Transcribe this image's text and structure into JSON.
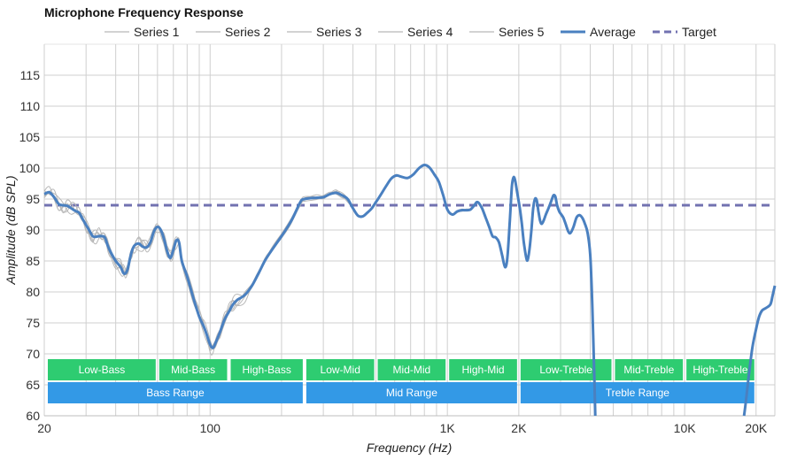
{
  "chart_data": {
    "type": "line",
    "title": "Microphone Frequency Response",
    "xlabel": "Frequency (Hz)",
    "ylabel": "Amplitude (dB SPL)",
    "x_scale": "log",
    "xlim": [
      20,
      24000
    ],
    "ylim": [
      60,
      120
    ],
    "yticks": [
      60,
      65,
      70,
      75,
      80,
      85,
      90,
      95,
      100,
      105,
      110,
      115
    ],
    "xtick_labels": [
      {
        "value": 20,
        "label": "20"
      },
      {
        "value": 100,
        "label": "100"
      },
      {
        "value": 1000,
        "label": "1K"
      },
      {
        "value": 2000,
        "label": "2K"
      },
      {
        "value": 10000,
        "label": "10K"
      },
      {
        "value": 20000,
        "label": "20K"
      }
    ],
    "grid": true,
    "legend_position": "top",
    "legend": [
      {
        "name": "Series 1",
        "style": "thin",
        "color": "#c4c4c4"
      },
      {
        "name": "Series 2",
        "style": "thin",
        "color": "#c4c4c4"
      },
      {
        "name": "Series 3",
        "style": "thin",
        "color": "#c4c4c4"
      },
      {
        "name": "Series 4",
        "style": "thin",
        "color": "#c4c4c4"
      },
      {
        "name": "Series 5",
        "style": "thin",
        "color": "#c4c4c4"
      },
      {
        "name": "Average",
        "style": "solid",
        "color": "#4a80c0"
      },
      {
        "name": "Target",
        "style": "dashed",
        "color": "#7272b0"
      }
    ],
    "target_value": 94,
    "average": [
      [
        20,
        95.8
      ],
      [
        21,
        96.1
      ],
      [
        22,
        95.3
      ],
      [
        23,
        94.2
      ],
      [
        24,
        94.0
      ],
      [
        25,
        93.9
      ],
      [
        26,
        93.5
      ],
      [
        27,
        93.1
      ],
      [
        28,
        92.8
      ],
      [
        29,
        91.8
      ],
      [
        30,
        90.8
      ],
      [
        31,
        89.9
      ],
      [
        32,
        89.0
      ],
      [
        33,
        88.9
      ],
      [
        34,
        89.0
      ],
      [
        35,
        89.0
      ],
      [
        36,
        88.8
      ],
      [
        37,
        87.5
      ],
      [
        38,
        86.5
      ],
      [
        40,
        85.0
      ],
      [
        42,
        84.0
      ],
      [
        43,
        83.1
      ],
      [
        44,
        83.0
      ],
      [
        45,
        83.8
      ],
      [
        46,
        85.5
      ],
      [
        47,
        86.8
      ],
      [
        48,
        87.5
      ],
      [
        50,
        87.8
      ],
      [
        52,
        87.3
      ],
      [
        54,
        87.2
      ],
      [
        56,
        88.0
      ],
      [
        58,
        89.8
      ],
      [
        60,
        90.5
      ],
      [
        62,
        90.0
      ],
      [
        64,
        88.5
      ],
      [
        66,
        86.5
      ],
      [
        68,
        85.5
      ],
      [
        70,
        86.8
      ],
      [
        72,
        88.3
      ],
      [
        74,
        88.0
      ],
      [
        76,
        85.0
      ],
      [
        80,
        82.5
      ],
      [
        85,
        79.0
      ],
      [
        90,
        76.0
      ],
      [
        95,
        74.0
      ],
      [
        100,
        71.5
      ],
      [
        103,
        71.0
      ],
      [
        106,
        72.0
      ],
      [
        110,
        73.5
      ],
      [
        115,
        75.5
      ],
      [
        120,
        76.8
      ],
      [
        125,
        78.0
      ],
      [
        130,
        78.7
      ],
      [
        140,
        79.5
      ],
      [
        150,
        81.0
      ],
      [
        160,
        83.0
      ],
      [
        170,
        85.0
      ],
      [
        180,
        86.5
      ],
      [
        200,
        89.0
      ],
      [
        220,
        91.5
      ],
      [
        240,
        94.5
      ],
      [
        250,
        95.0
      ],
      [
        280,
        95.2
      ],
      [
        300,
        95.3
      ],
      [
        320,
        95.8
      ],
      [
        340,
        96.0
      ],
      [
        360,
        95.6
      ],
      [
        380,
        95.0
      ],
      [
        400,
        93.5
      ],
      [
        420,
        92.3
      ],
      [
        440,
        92.2
      ],
      [
        460,
        92.8
      ],
      [
        480,
        93.5
      ],
      [
        500,
        94.5
      ],
      [
        520,
        95.5
      ],
      [
        550,
        97.0
      ],
      [
        580,
        98.3
      ],
      [
        610,
        98.8
      ],
      [
        640,
        98.6
      ],
      [
        680,
        98.4
      ],
      [
        720,
        99.0
      ],
      [
        760,
        100.0
      ],
      [
        800,
        100.5
      ],
      [
        840,
        100.1
      ],
      [
        880,
        99.0
      ],
      [
        920,
        97.8
      ],
      [
        960,
        95.6
      ],
      [
        1000,
        93.3
      ],
      [
        1050,
        92.5
      ],
      [
        1100,
        93.0
      ],
      [
        1150,
        93.2
      ],
      [
        1200,
        93.2
      ],
      [
        1250,
        93.3
      ],
      [
        1300,
        94.0
      ],
      [
        1330,
        94.5
      ],
      [
        1360,
        94.3
      ],
      [
        1400,
        93.5
      ],
      [
        1450,
        92.0
      ],
      [
        1500,
        90.5
      ],
      [
        1550,
        89.0
      ],
      [
        1600,
        88.8
      ],
      [
        1650,
        88.0
      ],
      [
        1700,
        86.0
      ],
      [
        1750,
        84.0
      ],
      [
        1790,
        85.5
      ],
      [
        1830,
        91.0
      ],
      [
        1870,
        97.0
      ],
      [
        1900,
        98.5
      ],
      [
        1930,
        98.0
      ],
      [
        1970,
        96.0
      ],
      [
        2020,
        93.5
      ],
      [
        2060,
        91.0
      ],
      [
        2100,
        88.0
      ],
      [
        2150,
        85.5
      ],
      [
        2180,
        85.2
      ],
      [
        2220,
        87.0
      ],
      [
        2260,
        90.0
      ],
      [
        2300,
        93.5
      ],
      [
        2340,
        95.0
      ],
      [
        2380,
        94.8
      ],
      [
        2420,
        93.0
      ],
      [
        2460,
        91.5
      ],
      [
        2500,
        91.0
      ],
      [
        2550,
        91.6
      ],
      [
        2600,
        92.5
      ],
      [
        2680,
        93.7
      ],
      [
        2760,
        95.0
      ],
      [
        2800,
        95.6
      ],
      [
        2850,
        95.4
      ],
      [
        2900,
        94.0
      ],
      [
        2960,
        93.0
      ],
      [
        3020,
        92.5
      ],
      [
        3080,
        92.0
      ],
      [
        3150,
        91.0
      ],
      [
        3230,
        89.8
      ],
      [
        3300,
        89.5
      ],
      [
        3400,
        90.5
      ],
      [
        3500,
        92.0
      ],
      [
        3600,
        92.4
      ],
      [
        3700,
        92.0
      ],
      [
        3800,
        91.0
      ],
      [
        3900,
        89.5
      ],
      [
        4000,
        86.0
      ],
      [
        4080,
        78.0
      ],
      [
        4150,
        68.0
      ],
      [
        4200,
        60.0
      ]
    ],
    "average_tail": [
      [
        17800,
        60.0
      ],
      [
        18200,
        63.0
      ],
      [
        18700,
        67.0
      ],
      [
        19300,
        71.0
      ],
      [
        20000,
        74.0
      ],
      [
        20600,
        76.0
      ],
      [
        21200,
        77.0
      ],
      [
        22000,
        77.4
      ],
      [
        23000,
        78.0
      ],
      [
        23500,
        79.5
      ],
      [
        24000,
        81.0
      ]
    ],
    "bands": [
      {
        "label": "Low-Bass",
        "from": 20,
        "to": 60,
        "row": "sub",
        "color": "#2ecc71"
      },
      {
        "label": "Mid-Bass",
        "from": 60,
        "to": 120,
        "row": "sub",
        "color": "#2ecc71"
      },
      {
        "label": "High-Bass",
        "from": 120,
        "to": 250,
        "row": "sub",
        "color": "#2ecc71"
      },
      {
        "label": "Low-Mid",
        "from": 250,
        "to": 500,
        "row": "sub",
        "color": "#2ecc71"
      },
      {
        "label": "Mid-Mid",
        "from": 500,
        "to": 1000,
        "row": "sub",
        "color": "#2ecc71"
      },
      {
        "label": "High-Mid",
        "from": 1000,
        "to": 2000,
        "row": "sub",
        "color": "#2ecc71"
      },
      {
        "label": "Low-Treble",
        "from": 2000,
        "to": 5000,
        "row": "sub",
        "color": "#2ecc71"
      },
      {
        "label": "Mid-Treble",
        "from": 5000,
        "to": 10000,
        "row": "sub",
        "color": "#2ecc71"
      },
      {
        "label": "High-Treble",
        "from": 10000,
        "to": 20000,
        "row": "sub",
        "color": "#2ecc71"
      },
      {
        "label": "Bass Range",
        "from": 20,
        "to": 250,
        "row": "main",
        "color": "#3399e6"
      },
      {
        "label": "Mid Range",
        "from": 250,
        "to": 2000,
        "row": "main",
        "color": "#3399e6"
      },
      {
        "label": "Treble Range",
        "from": 2000,
        "to": 20000,
        "row": "main",
        "color": "#3399e6"
      }
    ]
  }
}
